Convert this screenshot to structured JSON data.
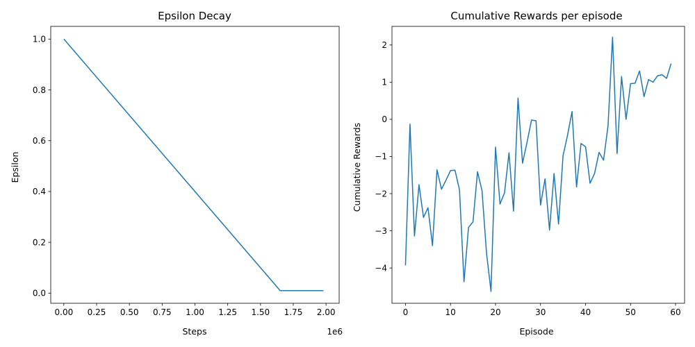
{
  "chart_data": [
    {
      "type": "line",
      "title": "Epsilon Decay",
      "xlabel": "Steps",
      "ylabel": "Epsilon",
      "x_offset_label": "1e6",
      "xlim": [
        -0.1,
        2.1
      ],
      "ylim": [
        -0.04,
        1.05
      ],
      "x_ticks": [
        0.0,
        0.25,
        0.5,
        0.75,
        1.0,
        1.25,
        1.5,
        1.75,
        2.0
      ],
      "x_tick_labels": [
        "0.00",
        "0.25",
        "0.50",
        "0.75",
        "1.00",
        "1.25",
        "1.50",
        "1.75",
        "2.00"
      ],
      "y_ticks": [
        0.0,
        0.2,
        0.4,
        0.6,
        0.8,
        1.0
      ],
      "y_tick_labels": [
        "0.0",
        "0.2",
        "0.4",
        "0.6",
        "0.8",
        "1.0"
      ],
      "grid": false,
      "color": "#1f77b4",
      "series": [
        {
          "x": [
            0.0,
            1.65,
            1.98
          ],
          "y": [
            1.0,
            0.01,
            0.01
          ]
        }
      ]
    },
    {
      "type": "line",
      "title": "Cumulative Rewards per episode",
      "xlabel": "Episode",
      "ylabel": "Cumulative Rewards",
      "xlim": [
        -3,
        62
      ],
      "ylim": [
        -4.95,
        2.5
      ],
      "x_ticks": [
        0,
        10,
        20,
        30,
        40,
        50,
        60
      ],
      "x_tick_labels": [
        "0",
        "10",
        "20",
        "30",
        "40",
        "50",
        "60"
      ],
      "y_ticks": [
        -4,
        -3,
        -2,
        -1,
        0,
        1,
        2
      ],
      "y_tick_labels": [
        "−4",
        "−3",
        "−2",
        "−1",
        "0",
        "1",
        "2"
      ],
      "grid": false,
      "color": "#1f77b4",
      "series": [
        {
          "x": [
            0,
            1,
            2,
            3,
            4,
            5,
            6,
            7,
            8,
            9,
            10,
            11,
            12,
            13,
            14,
            15,
            16,
            17,
            18,
            19,
            20,
            21,
            22,
            23,
            24,
            25,
            26,
            27,
            28,
            29,
            30,
            31,
            32,
            33,
            34,
            35,
            36,
            37,
            38,
            39,
            40,
            41,
            42,
            43,
            44,
            45,
            46,
            47,
            48,
            49,
            50,
            51,
            52,
            53,
            54,
            55,
            56,
            57,
            58,
            59
          ],
          "y": [
            -3.93,
            -0.13,
            -3.14,
            -1.76,
            -2.64,
            -2.38,
            -3.4,
            -1.36,
            -1.88,
            -1.64,
            -1.38,
            -1.37,
            -1.9,
            -4.37,
            -2.91,
            -2.76,
            -1.41,
            -1.92,
            -3.6,
            -4.63,
            -0.75,
            -2.28,
            -1.98,
            -0.9,
            -2.47,
            0.57,
            -1.18,
            -0.62,
            -0.02,
            -0.04,
            -2.31,
            -1.6,
            -2.98,
            -1.46,
            -2.82,
            -0.98,
            -0.43,
            0.21,
            -1.82,
            -0.65,
            -0.74,
            -1.72,
            -1.46,
            -0.89,
            -1.1,
            -0.17,
            2.21,
            -0.92,
            1.15,
            0.0,
            0.96,
            0.97,
            1.3,
            0.61,
            1.07,
            1.0,
            1.17,
            1.2,
            1.1,
            1.5
          ]
        }
      ]
    }
  ]
}
